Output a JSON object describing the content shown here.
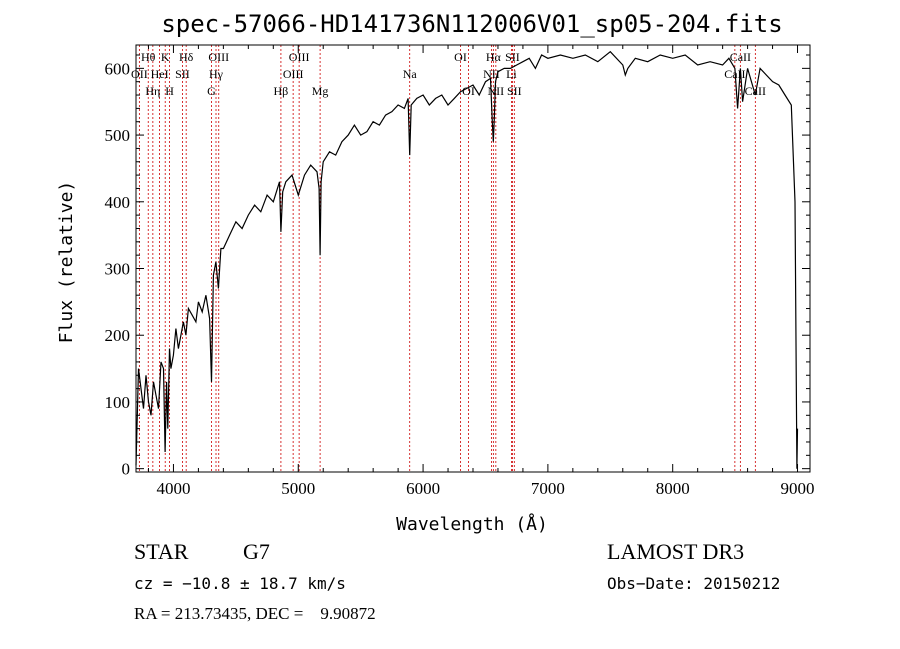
{
  "chart_data": {
    "type": "line",
    "title": "spec-57066-HD141736N112006V01_sp05-204.fits",
    "xlabel": "Wavelength (Å)",
    "ylabel": "Flux (relative)",
    "xlim": [
      3700,
      9100
    ],
    "ylim": [
      -5,
      635
    ],
    "xticks": [
      4000,
      5000,
      6000,
      7000,
      8000,
      9000
    ],
    "yticks": [
      0,
      100,
      200,
      300,
      400,
      500,
      600
    ],
    "grid": false,
    "series": [
      {
        "x": [
          3700,
          3720,
          3740,
          3760,
          3780,
          3800,
          3820,
          3840,
          3860,
          3880,
          3900,
          3920,
          3933,
          3945,
          3955,
          3968,
          3980,
          4000,
          4020,
          4040,
          4060,
          4080,
          4100,
          4120,
          4150,
          4180,
          4200,
          4230,
          4260,
          4290,
          4305,
          4320,
          4340,
          4360,
          4380,
          4400,
          4450,
          4500,
          4550,
          4600,
          4650,
          4700,
          4750,
          4800,
          4850,
          4861,
          4875,
          4900,
          4950,
          5000,
          5050,
          5100,
          5150,
          5167,
          5175,
          5183,
          5200,
          5250,
          5300,
          5350,
          5400,
          5450,
          5500,
          5550,
          5600,
          5650,
          5700,
          5750,
          5800,
          5850,
          5880,
          5893,
          5905,
          5950,
          6000,
          6050,
          6100,
          6150,
          6200,
          6250,
          6300,
          6350,
          6400,
          6450,
          6500,
          6540,
          6555,
          6563,
          6570,
          6580,
          6600,
          6650,
          6700,
          6750,
          6800,
          6850,
          6900,
          6950,
          7000,
          7100,
          7200,
          7300,
          7400,
          7500,
          7600,
          7620,
          7640,
          7700,
          7800,
          7900,
          8000,
          8100,
          8200,
          8300,
          8400,
          8450,
          8498,
          8520,
          8542,
          8560,
          8600,
          8662,
          8700,
          8750,
          8800,
          8850,
          8900,
          8950,
          8980,
          8995,
          9000
        ],
        "y": [
          5,
          150,
          120,
          90,
          140,
          100,
          80,
          130,
          110,
          90,
          160,
          150,
          25,
          130,
          60,
          180,
          150,
          170,
          210,
          180,
          200,
          220,
          200,
          240,
          230,
          220,
          250,
          235,
          260,
          225,
          130,
          290,
          310,
          270,
          330,
          330,
          350,
          370,
          360,
          380,
          395,
          385,
          410,
          400,
          430,
          355,
          415,
          430,
          440,
          410,
          440,
          455,
          445,
          420,
          320,
          430,
          460,
          475,
          470,
          490,
          500,
          515,
          500,
          505,
          520,
          515,
          530,
          535,
          545,
          540,
          555,
          470,
          545,
          555,
          560,
          545,
          555,
          560,
          545,
          555,
          565,
          570,
          575,
          560,
          580,
          585,
          520,
          490,
          520,
          580,
          595,
          600,
          600,
          605,
          610,
          615,
          600,
          620,
          615,
          620,
          615,
          620,
          610,
          625,
          605,
          590,
          600,
          615,
          610,
          620,
          615,
          620,
          605,
          610,
          605,
          615,
          600,
          540,
          600,
          550,
          600,
          560,
          600,
          590,
          580,
          575,
          560,
          545,
          400,
          0,
          60
        ]
      }
    ],
    "line_markers": [
      {
        "wavelength": 3727,
        "label": "OII",
        "row": 2
      },
      {
        "wavelength": 3798,
        "label": "Hθ",
        "row": 1
      },
      {
        "wavelength": 3835,
        "label": "Hη",
        "row": 3
      },
      {
        "wavelength": 3889,
        "label": "HeI",
        "row": 2
      },
      {
        "wavelength": 3934,
        "label": "K",
        "row": 1
      },
      {
        "wavelength": 3969,
        "label": "H",
        "row": 3
      },
      {
        "wavelength": 4072,
        "label": "SII",
        "row": 2
      },
      {
        "wavelength": 4102,
        "label": "Hδ",
        "row": 1
      },
      {
        "wavelength": 4305,
        "label": "G",
        "row": 3
      },
      {
        "wavelength": 4341,
        "label": "Hγ",
        "row": 2
      },
      {
        "wavelength": 4363,
        "label": "OIII",
        "row": 1
      },
      {
        "wavelength": 4861,
        "label": "Hβ",
        "row": 3
      },
      {
        "wavelength": 4959,
        "label": "OIII",
        "row": 2
      },
      {
        "wavelength": 5007,
        "label": "OIII",
        "row": 1
      },
      {
        "wavelength": 5175,
        "label": "Mg",
        "row": 3
      },
      {
        "wavelength": 5893,
        "label": "Na",
        "row": 2
      },
      {
        "wavelength": 6300,
        "label": "OI",
        "row": 1
      },
      {
        "wavelength": 6364,
        "label": "OI",
        "row": 3
      },
      {
        "wavelength": 6548,
        "label": "NII",
        "row": 2
      },
      {
        "wavelength": 6563,
        "label": "Hα",
        "row": 1
      },
      {
        "wavelength": 6583,
        "label": "NII",
        "row": 3
      },
      {
        "wavelength": 6708,
        "label": "Li",
        "row": 2
      },
      {
        "wavelength": 6716,
        "label": "SII",
        "row": 1
      },
      {
        "wavelength": 6731,
        "label": "SII",
        "row": 3
      },
      {
        "wavelength": 8498,
        "label": "CaII",
        "row": 2
      },
      {
        "wavelength": 8542,
        "label": "CaII",
        "row": 1
      },
      {
        "wavelength": 8662,
        "label": "CaII",
        "row": 3
      }
    ],
    "colors": {
      "spectrum": "#000000",
      "marker": "#cc0000",
      "axis": "#000000"
    }
  },
  "info": {
    "object_type": "STAR",
    "subclass": "G7",
    "survey": "LAMOST DR3",
    "cz": "cz = −10.8 ± 18.7 km/s",
    "obs_date": "Obs−Date: 20150212",
    "coords": "RA = 213.73435, DEC =    9.90872"
  }
}
